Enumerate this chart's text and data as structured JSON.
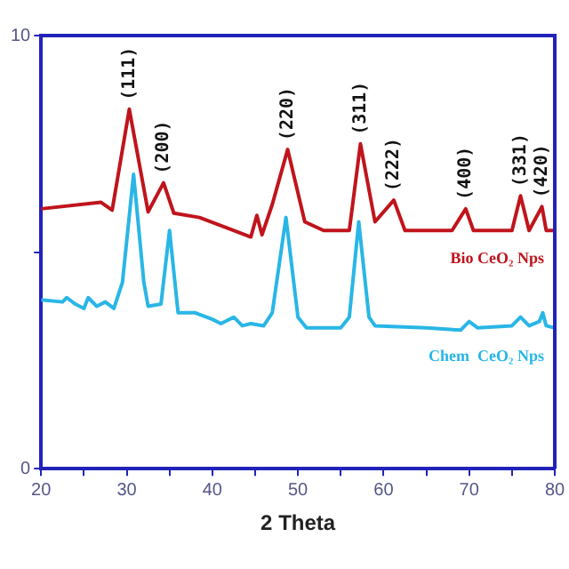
{
  "chart_data": {
    "type": "line",
    "xlabel": "2 Theta",
    "xlim": [
      20,
      80
    ],
    "xticks": [
      20,
      {
        "value": 25,
        "label": null
      },
      30,
      {
        "value": 35,
        "label": null
      },
      40,
      {
        "value": 45,
        "label": null
      },
      50,
      {
        "value": 55,
        "label": null
      },
      60,
      {
        "value": 65,
        "label": null
      },
      70,
      {
        "value": 75,
        "label": null
      },
      80
    ],
    "ylim": [
      0,
      10
    ],
    "yticks": [
      0,
      {
        "value": 5,
        "label": null
      },
      10
    ],
    "grid": false,
    "legend": false,
    "marker": "none",
    "line_style": "solid",
    "series": [
      {
        "name": "Bio CeO₂ Nps",
        "color": "#c0141c",
        "x": [
          20,
          27,
          28.3,
          30.3,
          32.5,
          34.3,
          35.5,
          38.5,
          44.5,
          45.2,
          45.8,
          47,
          48.8,
          50.8,
          53,
          56,
          57.3,
          59,
          61.2,
          62.5,
          68,
          69.6,
          70.5,
          75,
          76,
          77,
          78.5,
          79,
          80
        ],
        "values": [
          6.0,
          6.15,
          5.97,
          8.3,
          5.93,
          6.6,
          5.9,
          5.8,
          5.35,
          5.85,
          5.4,
          6.1,
          7.37,
          5.7,
          5.5,
          5.5,
          7.5,
          5.7,
          6.2,
          5.5,
          5.5,
          6.0,
          5.5,
          5.5,
          6.3,
          5.5,
          6.05,
          5.5,
          5.5
        ]
      },
      {
        "name": "Chem  CeO₂ Nps",
        "color": "#29b6e6",
        "x": [
          20,
          22.5,
          23,
          24,
          25,
          25.5,
          26.5,
          27.5,
          28.5,
          29.5,
          30.8,
          32,
          32.5,
          34,
          35,
          36,
          38,
          40,
          41,
          42.5,
          43.5,
          44.5,
          46,
          47,
          48.6,
          50,
          51,
          55,
          56,
          57.1,
          58.3,
          59,
          65,
          69,
          70,
          71,
          75,
          76,
          77,
          78.2,
          78.6,
          79,
          80
        ],
        "values": [
          3.9,
          3.85,
          3.95,
          3.8,
          3.7,
          3.95,
          3.75,
          3.85,
          3.7,
          4.3,
          6.8,
          4.3,
          3.75,
          3.8,
          5.5,
          3.6,
          3.6,
          3.45,
          3.35,
          3.5,
          3.3,
          3.35,
          3.3,
          3.6,
          5.8,
          3.5,
          3.25,
          3.25,
          3.5,
          5.7,
          3.5,
          3.3,
          3.25,
          3.2,
          3.4,
          3.25,
          3.3,
          3.5,
          3.3,
          3.4,
          3.6,
          3.3,
          3.25
        ]
      }
    ],
    "annotations": [
      {
        "text": "(111)",
        "x": 30.3,
        "y": 8.3
      },
      {
        "text": "(200)",
        "x": 34.3,
        "y": 6.6
      },
      {
        "text": "(220)",
        "x": 48.8,
        "y": 7.37
      },
      {
        "text": "(311)",
        "x": 57.3,
        "y": 7.5
      },
      {
        "text": "(222)",
        "x": 61.2,
        "y": 6.2
      },
      {
        "text": "(400)",
        "x": 69.6,
        "y": 6.0
      },
      {
        "text": "(331)",
        "x": 76,
        "y": 6.3
      },
      {
        "text": "(420)",
        "x": 78.5,
        "y": 6.05
      }
    ]
  }
}
